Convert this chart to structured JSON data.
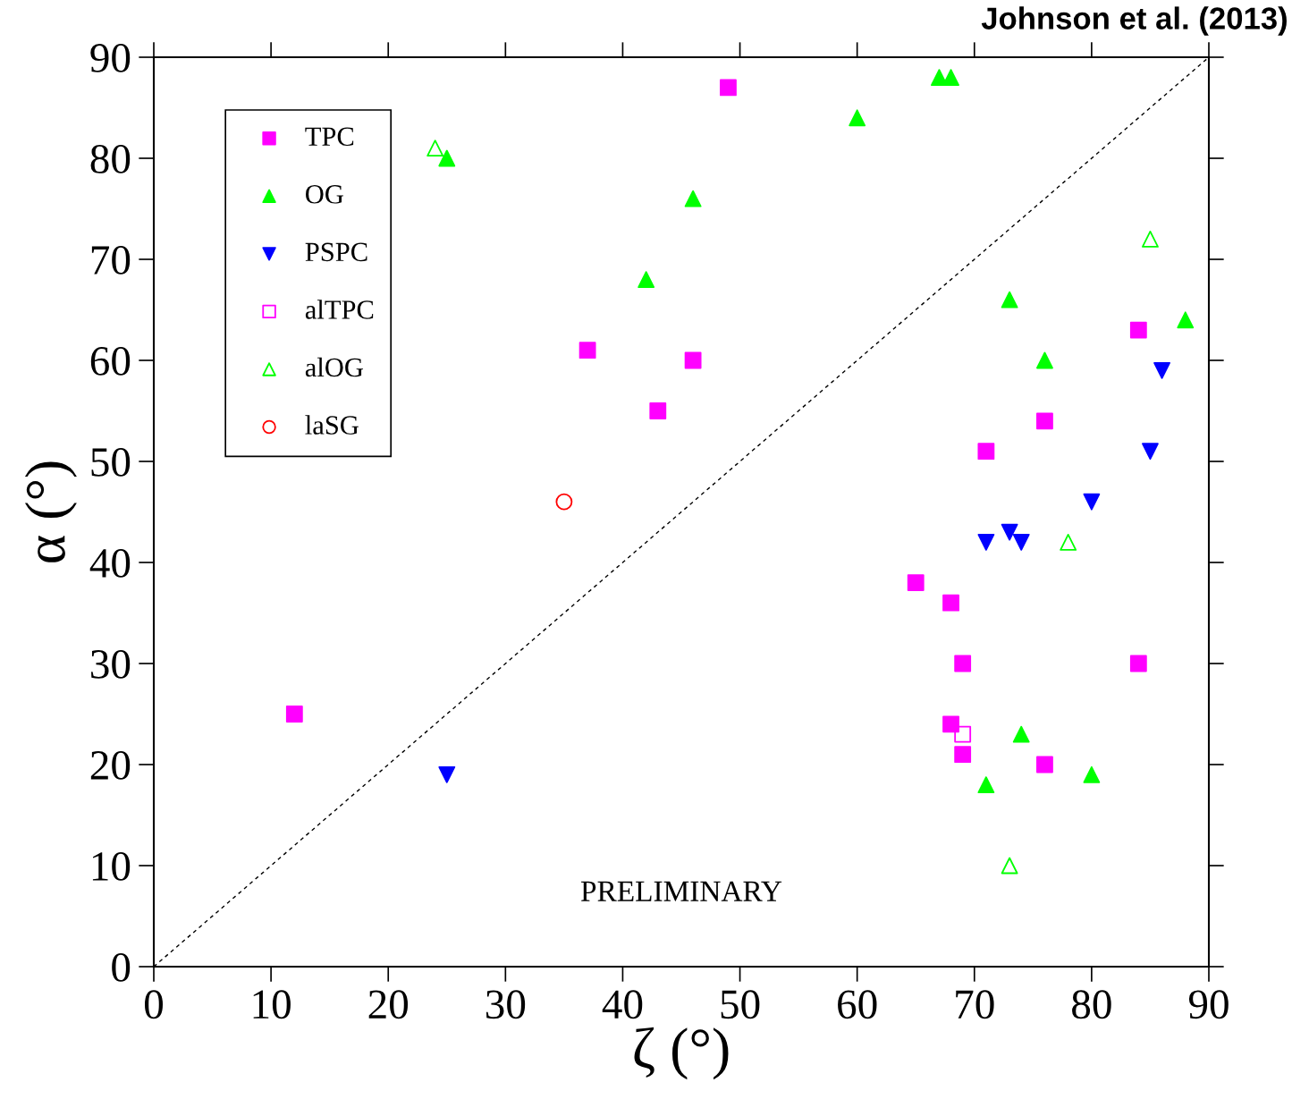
{
  "chart_data": {
    "type": "scatter",
    "xlabel": "ζ (°)",
    "ylabel": "α (°)",
    "xlim": [
      0,
      90
    ],
    "ylim": [
      0,
      90
    ],
    "xticks": [
      0,
      10,
      20,
      30,
      40,
      50,
      60,
      70,
      80,
      90
    ],
    "yticks": [
      0,
      10,
      20,
      30,
      40,
      50,
      60,
      70,
      80,
      90
    ],
    "grid": false,
    "legend": "top left",
    "annotations": [
      "PRELIMINARY",
      "Johnson et al. (2013)"
    ],
    "series": [
      {
        "name": "TPC",
        "color": "#ff00ff",
        "marker": "square",
        "x": [
          12,
          49,
          37,
          46,
          43,
          65,
          68,
          69,
          68,
          69,
          76,
          76,
          71,
          84,
          84
        ],
        "values": [
          25,
          87,
          61,
          60,
          55,
          38,
          36,
          30,
          24,
          21,
          20,
          54,
          51,
          63,
          30
        ]
      },
      {
        "name": "OG",
        "color": "#00ff00",
        "marker": "triangle",
        "x": [
          25,
          67,
          68,
          60,
          46,
          42,
          73,
          76,
          88,
          74,
          71,
          80
        ],
        "values": [
          80,
          88,
          88,
          84,
          76,
          68,
          66,
          60,
          64,
          23,
          18,
          19
        ]
      },
      {
        "name": "PSPC",
        "color": "#0000ff",
        "marker": "triangle-down",
        "x": [
          25,
          71,
          73,
          74,
          80,
          85,
          86
        ],
        "values": [
          19,
          42,
          43,
          42,
          46,
          51,
          59
        ]
      },
      {
        "name": "alTPC",
        "color": "#ff00ff",
        "marker": "square-open",
        "x": [
          69
        ],
        "values": [
          23
        ]
      },
      {
        "name": "alOG",
        "color": "#00ff00",
        "marker": "triangle-open",
        "x": [
          24,
          85,
          78,
          73
        ],
        "values": [
          81,
          72,
          42,
          10
        ]
      },
      {
        "name": "laSG",
        "color": "#ff0000",
        "marker": "circle-open",
        "x": [
          35
        ],
        "values": [
          46
        ]
      },
      {
        "type": "line",
        "color": "#000000",
        "line_style": "dashed",
        "marker": "none",
        "x": [
          0,
          90
        ],
        "values": [
          0,
          90
        ]
      }
    ]
  }
}
